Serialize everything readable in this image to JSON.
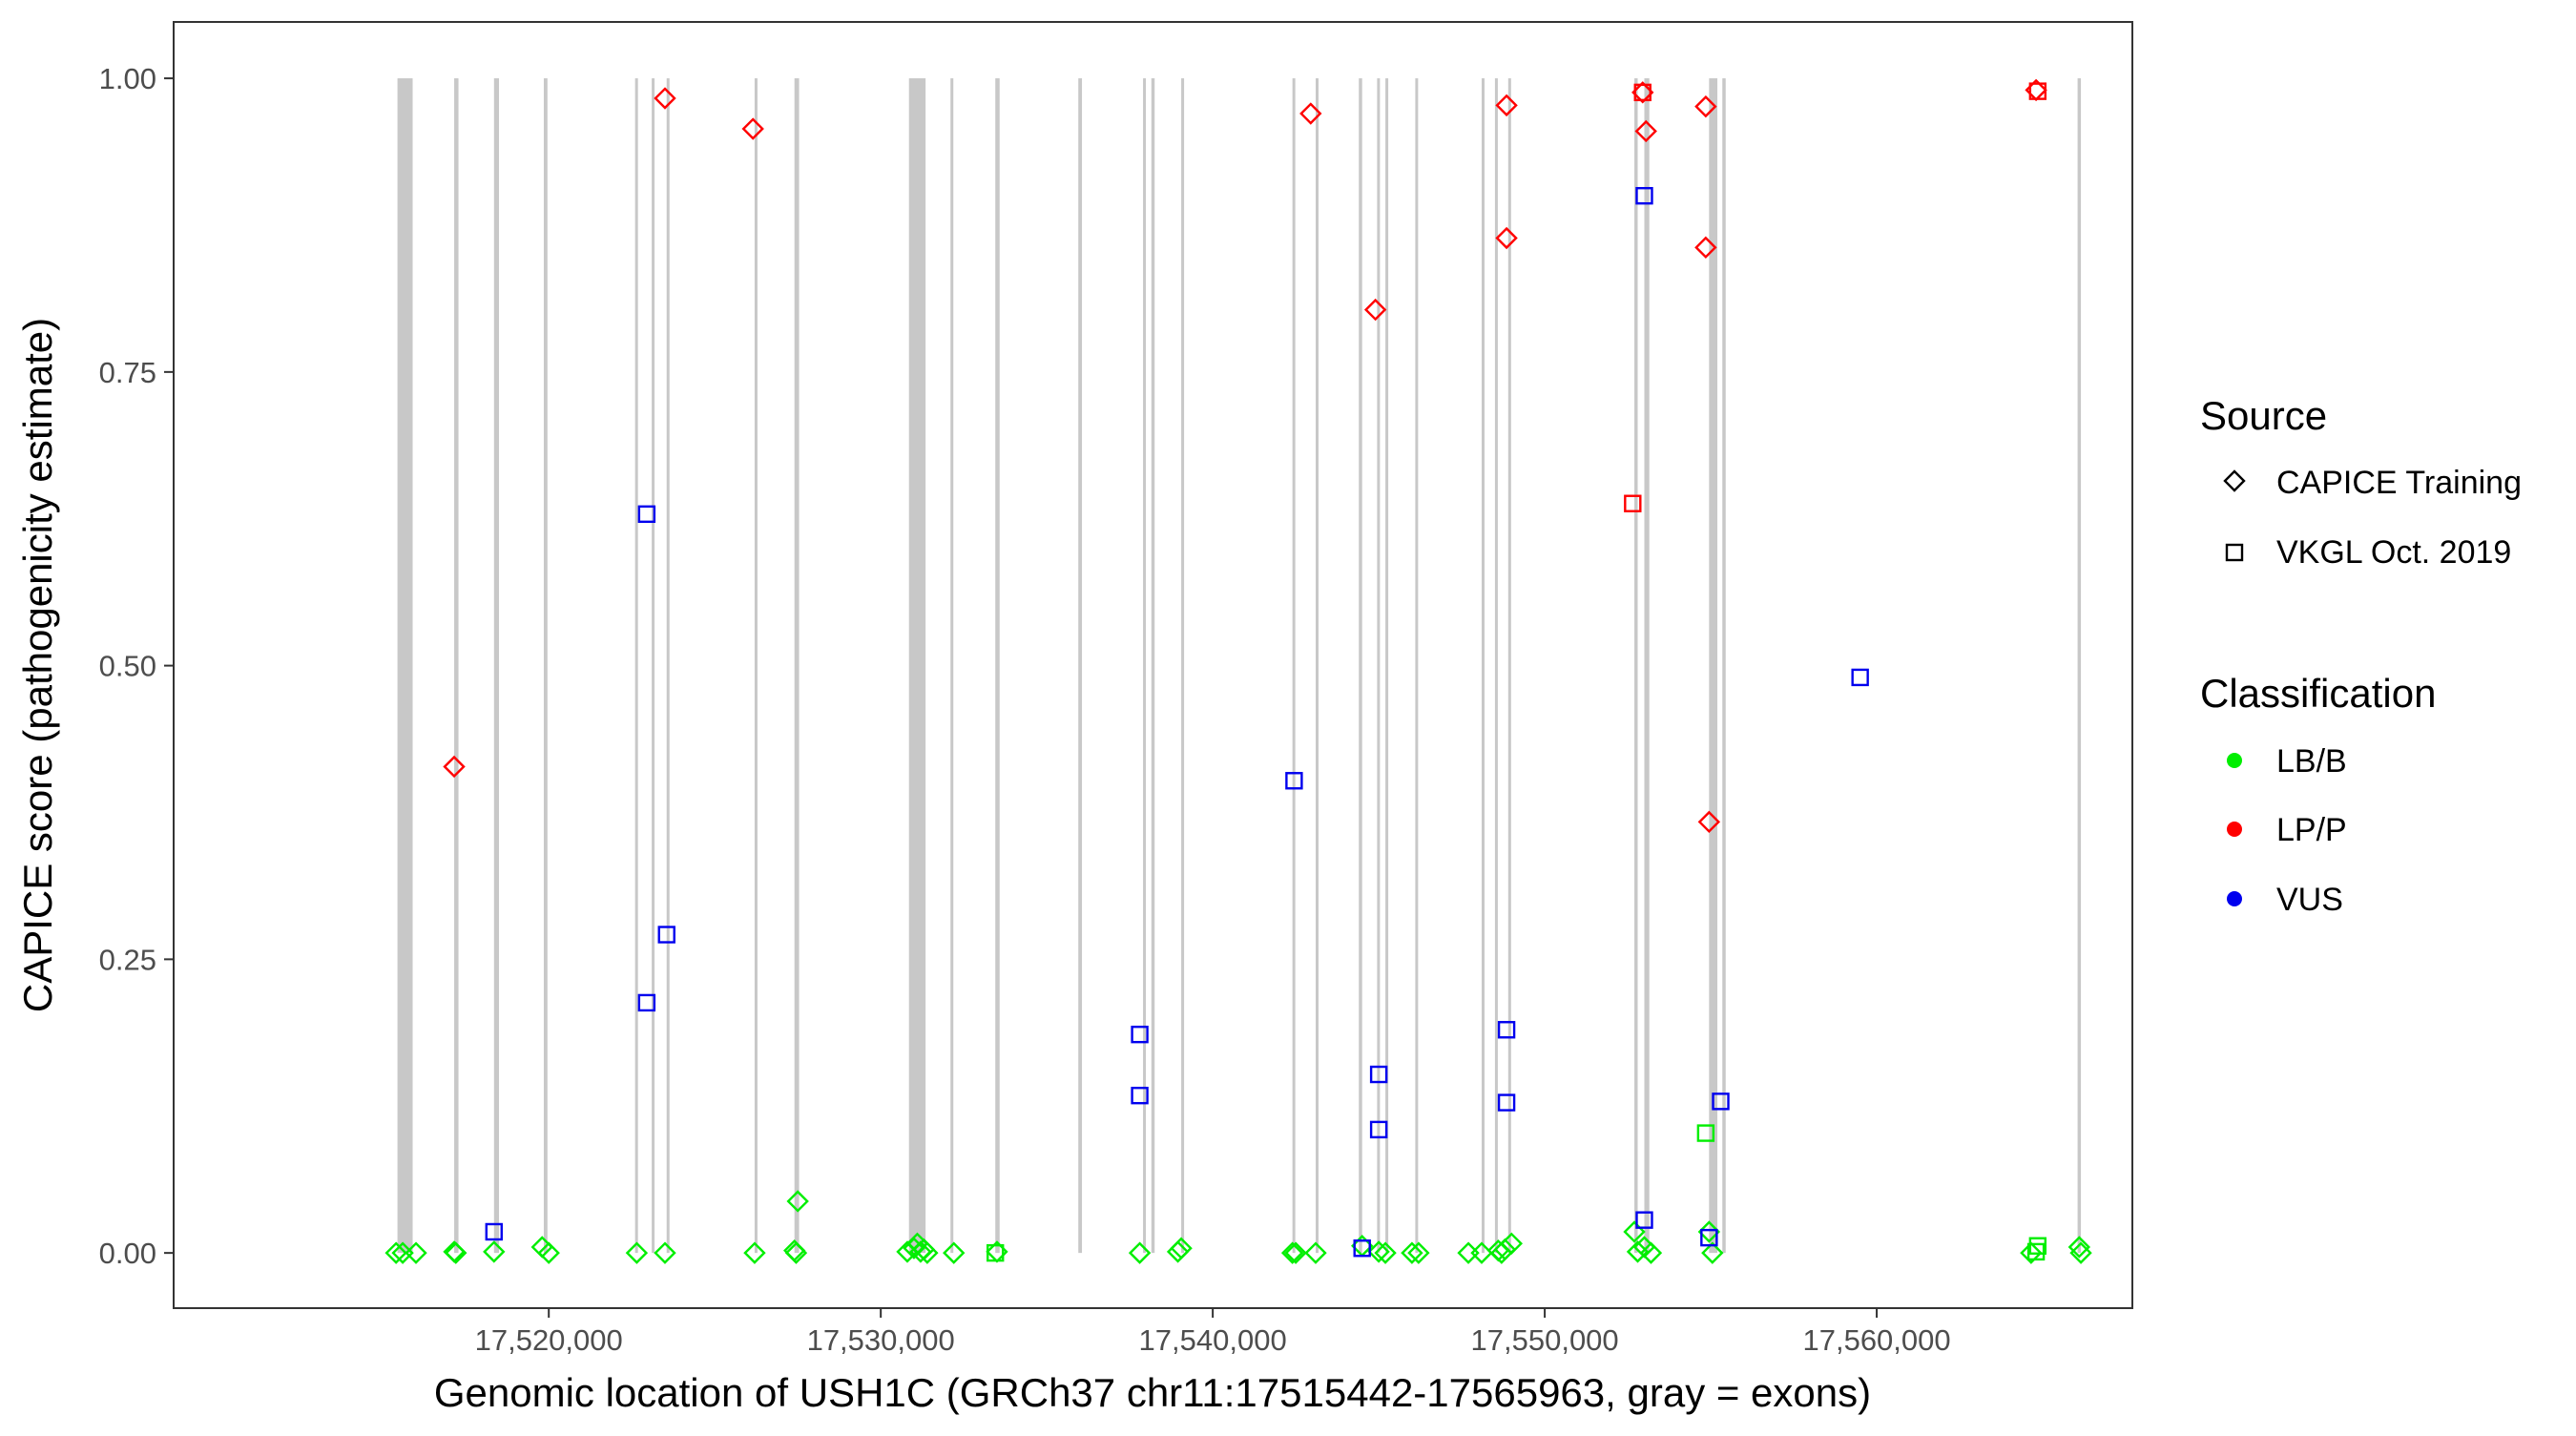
{
  "chart_data": {
    "type": "scatter",
    "title": "",
    "xlabel": "Genomic location of USH1C (GRCh37 chr11:17515442-17565963, gray = exons)",
    "ylabel": "CAPICE score (pathogenicity estimate)",
    "xlim": [
      17508700,
      17567700
    ],
    "ylim": [
      -0.047,
      1.048
    ],
    "x_ticks": [
      17520000,
      17530000,
      17540000,
      17550000,
      17560000
    ],
    "x_tick_labels": [
      "17,520,000",
      "17,530,000",
      "17,540,000",
      "17,550,000",
      "17,560,000"
    ],
    "y_ticks": [
      0,
      0.25,
      0.5,
      0.75,
      1.0
    ],
    "y_tick_labels": [
      "0.00",
      "0.25",
      "0.50",
      "0.75",
      "1.00"
    ],
    "grid": false,
    "legend_position": "right",
    "colors": {
      "LB/B": "#00ee00",
      "LP/P": "#ff0000",
      "VUS": "#0000ee",
      "exon": "#c8c8c8"
    },
    "exons": [
      [
        17515442,
        17515900
      ],
      [
        17517150,
        17517280
      ],
      [
        17518350,
        17518500
      ],
      [
        17519850,
        17519960
      ],
      [
        17522600,
        17522650
      ],
      [
        17523100,
        17523150
      ],
      [
        17523550,
        17523600
      ],
      [
        17526200,
        17526260
      ],
      [
        17527400,
        17527540
      ],
      [
        17530850,
        17531350
      ],
      [
        17532100,
        17532180
      ],
      [
        17533450,
        17533580
      ],
      [
        17535950,
        17536060
      ],
      [
        17537900,
        17537980
      ],
      [
        17538150,
        17538250
      ],
      [
        17539050,
        17539110
      ],
      [
        17542400,
        17542450
      ],
      [
        17543100,
        17543150
      ],
      [
        17544400,
        17544500
      ],
      [
        17544950,
        17545000
      ],
      [
        17545200,
        17545260
      ],
      [
        17546100,
        17546160
      ],
      [
        17548100,
        17548150
      ],
      [
        17548500,
        17548550
      ],
      [
        17548900,
        17548950
      ],
      [
        17552700,
        17552800
      ],
      [
        17553000,
        17553150
      ],
      [
        17554950,
        17555200
      ],
      [
        17555350,
        17555450
      ],
      [
        17566050,
        17566150
      ]
    ],
    "legend": {
      "source_title": "Source",
      "source_entries": [
        "CAPICE Training",
        "VKGL Oct. 2019"
      ],
      "classification_title": "Classification",
      "classification_entries": [
        "LB/B",
        "LP/P",
        "VUS"
      ]
    },
    "series": [
      {
        "source": "CAPICE Training",
        "classification": "LB/B",
        "points": [
          [
            17515400,
            0.0
          ],
          [
            17515600,
            0.0
          ],
          [
            17516000,
            0.0
          ],
          [
            17517150,
            0.001
          ],
          [
            17517200,
            0.0
          ],
          [
            17518350,
            0.001
          ],
          [
            17519800,
            0.005
          ],
          [
            17520000,
            0.0
          ],
          [
            17522650,
            0.0
          ],
          [
            17523500,
            0.0
          ],
          [
            17526200,
            0.0
          ],
          [
            17527400,
            0.002
          ],
          [
            17527450,
            0.0
          ],
          [
            17527500,
            0.044
          ],
          [
            17530800,
            0.001
          ],
          [
            17531000,
            0.004
          ],
          [
            17531100,
            0.008
          ],
          [
            17531200,
            0.001
          ],
          [
            17531300,
            0.003
          ],
          [
            17531400,
            0.0
          ],
          [
            17532200,
            0.0
          ],
          [
            17533500,
            0.001
          ],
          [
            17537800,
            0.0
          ],
          [
            17538950,
            0.001
          ],
          [
            17539050,
            0.004
          ],
          [
            17542400,
            0.0
          ],
          [
            17542500,
            0.0
          ],
          [
            17543100,
            0.0
          ],
          [
            17544500,
            0.006
          ],
          [
            17545000,
            0.001
          ],
          [
            17545200,
            0.0
          ],
          [
            17546000,
            0.0
          ],
          [
            17546200,
            0.0
          ],
          [
            17547700,
            0.0
          ],
          [
            17548100,
            0.0
          ],
          [
            17548600,
            0.002
          ],
          [
            17548700,
            0.0
          ],
          [
            17548800,
            0.003
          ],
          [
            17549000,
            0.008
          ],
          [
            17552700,
            0.018
          ],
          [
            17552800,
            0.001
          ],
          [
            17553000,
            0.005
          ],
          [
            17553200,
            0.0
          ],
          [
            17554950,
            0.018
          ],
          [
            17555050,
            0.0
          ],
          [
            17564650,
            0.0
          ],
          [
            17566100,
            0.005
          ],
          [
            17566150,
            0.0
          ]
        ]
      },
      {
        "source": "VKGL Oct. 2019",
        "classification": "LB/B",
        "points": [
          [
            17533450,
            0.0
          ],
          [
            17554850,
            0.102
          ],
          [
            17564800,
            0.001
          ],
          [
            17564850,
            0.006
          ]
        ]
      },
      {
        "source": "CAPICE Training",
        "classification": "LP/P",
        "points": [
          [
            17517150,
            0.414
          ],
          [
            17523500,
            0.983
          ],
          [
            17526150,
            0.957
          ],
          [
            17542950,
            0.97
          ],
          [
            17544900,
            0.803
          ],
          [
            17548850,
            0.977
          ],
          [
            17548850,
            0.864
          ],
          [
            17552950,
            0.988
          ],
          [
            17553050,
            0.955
          ],
          [
            17554850,
            0.976
          ],
          [
            17554850,
            0.856
          ],
          [
            17554950,
            0.367
          ],
          [
            17564800,
            0.99
          ]
        ]
      },
      {
        "source": "VKGL Oct. 2019",
        "classification": "LP/P",
        "points": [
          [
            17552650,
            0.638
          ],
          [
            17552950,
            0.988
          ],
          [
            17564850,
            0.989
          ]
        ]
      },
      {
        "source": "VKGL Oct. 2019",
        "classification": "VUS",
        "points": [
          [
            17518350,
            0.018
          ],
          [
            17522950,
            0.629
          ],
          [
            17522950,
            0.213
          ],
          [
            17523550,
            0.271
          ],
          [
            17537800,
            0.186
          ],
          [
            17537800,
            0.134
          ],
          [
            17542450,
            0.402
          ],
          [
            17544500,
            0.004
          ],
          [
            17545000,
            0.152
          ],
          [
            17545000,
            0.105
          ],
          [
            17548850,
            0.19
          ],
          [
            17548850,
            0.128
          ],
          [
            17553000,
            0.9
          ],
          [
            17553000,
            0.028
          ],
          [
            17554950,
            0.013
          ],
          [
            17555300,
            0.129
          ],
          [
            17559500,
            0.49
          ]
        ]
      }
    ]
  }
}
